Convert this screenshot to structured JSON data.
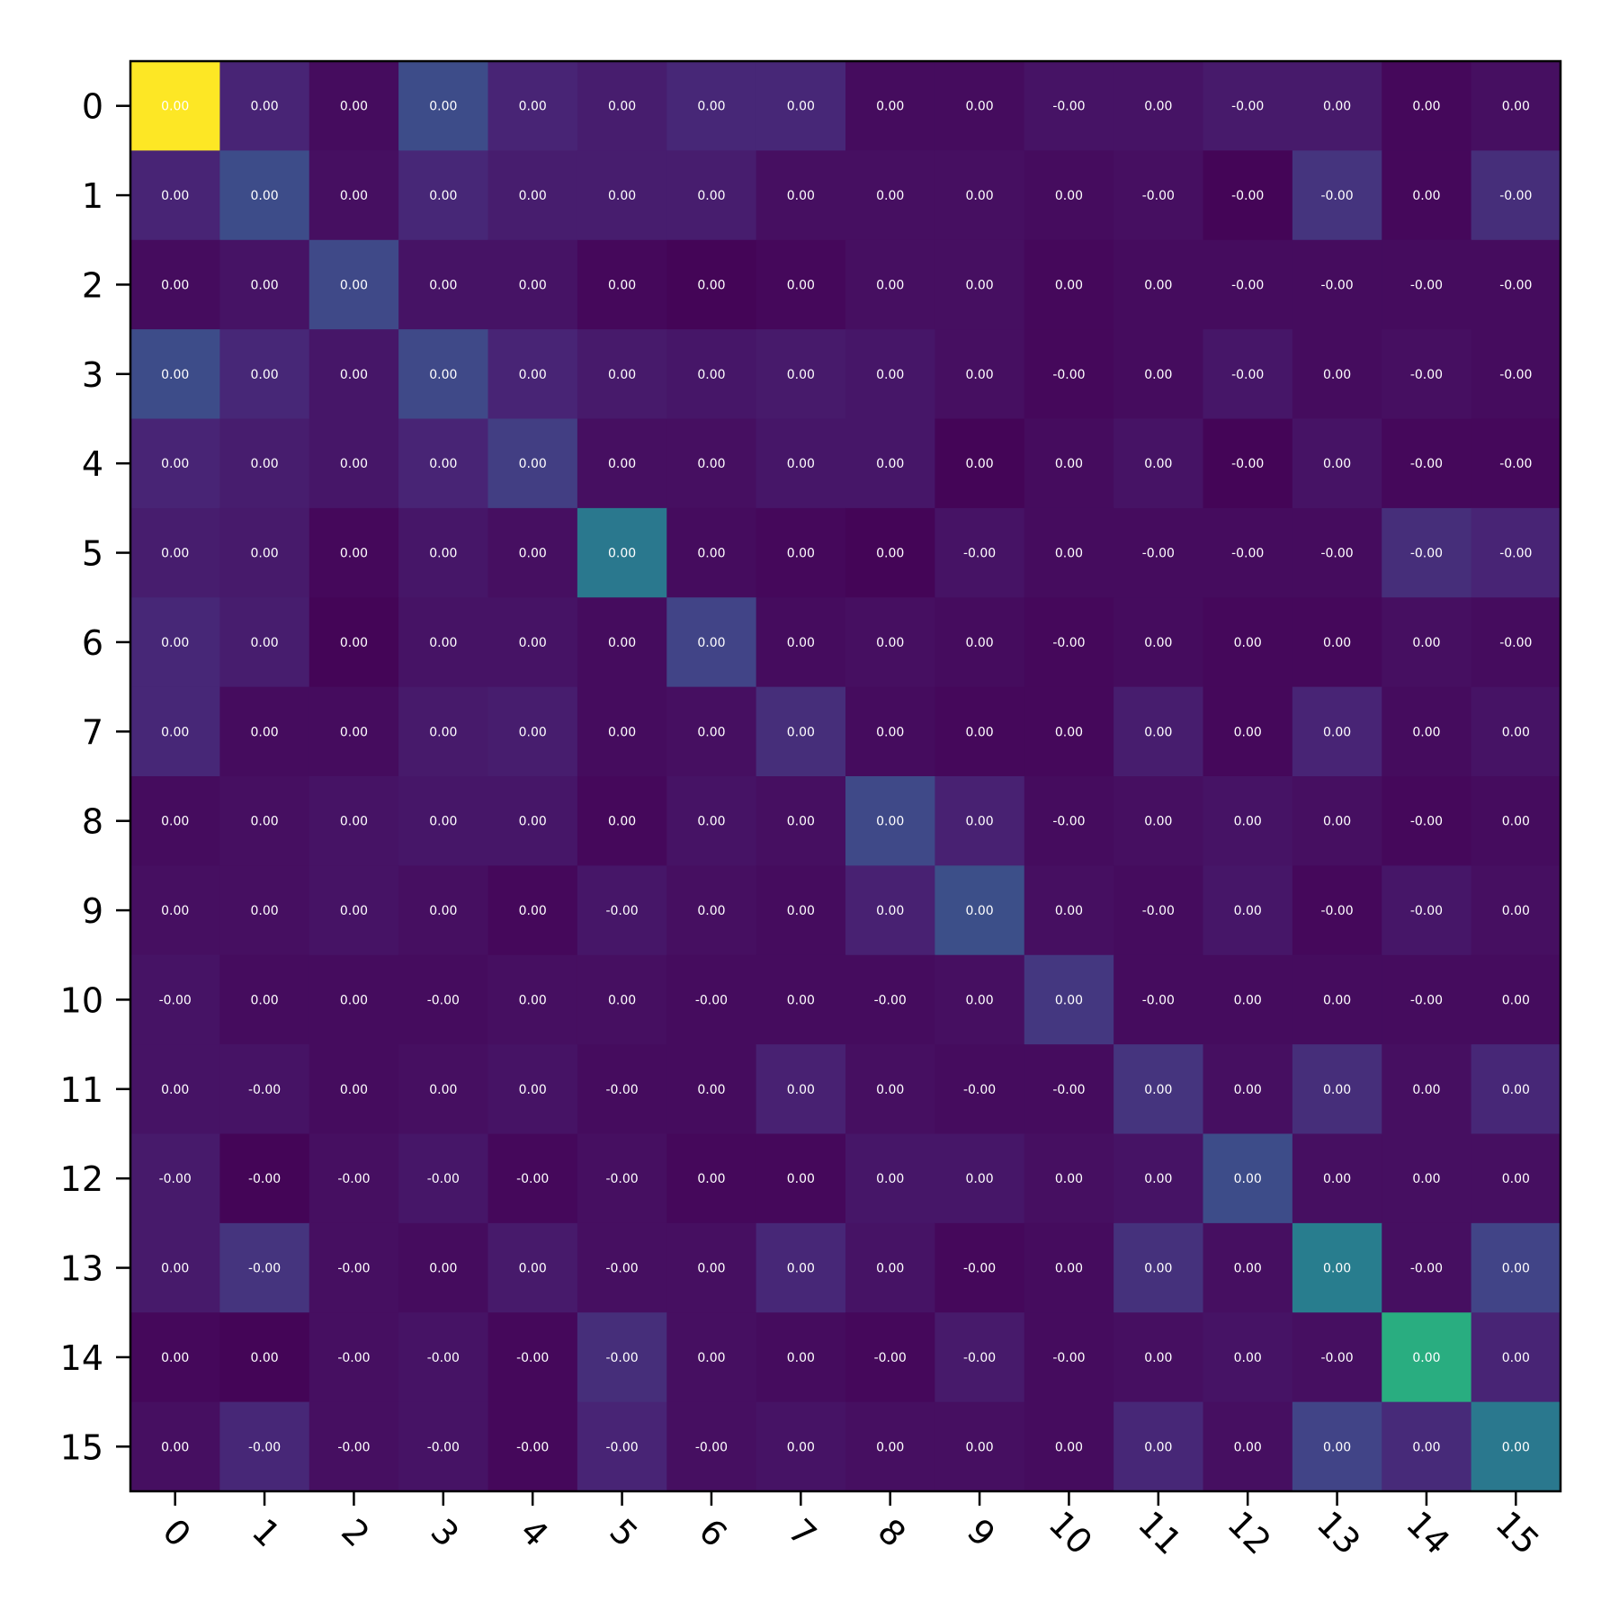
{
  "chart_data": {
    "type": "heatmap",
    "colormap": "viridis",
    "title": "",
    "xlabel": "",
    "ylabel": "",
    "x_tick_labels": [
      "0",
      "1",
      "2",
      "3",
      "4",
      "5",
      "6",
      "7",
      "8",
      "9",
      "10",
      "11",
      "12",
      "13",
      "14",
      "15"
    ],
    "y_tick_labels": [
      "0",
      "1",
      "2",
      "3",
      "4",
      "5",
      "6",
      "7",
      "8",
      "9",
      "10",
      "11",
      "12",
      "13",
      "14",
      "15"
    ],
    "x_tick_rotation_deg": 45,
    "cell_text_labels": [
      [
        "0.00",
        "0.00",
        "0.00",
        "0.00",
        "0.00",
        "0.00",
        "0.00",
        "0.00",
        "0.00",
        "0.00",
        "-0.00",
        "0.00",
        "-0.00",
        "0.00",
        "0.00",
        "0.00"
      ],
      [
        "0.00",
        "0.00",
        "0.00",
        "0.00",
        "0.00",
        "0.00",
        "0.00",
        "0.00",
        "0.00",
        "0.00",
        "0.00",
        "-0.00",
        "-0.00",
        "-0.00",
        "0.00",
        "-0.00"
      ],
      [
        "0.00",
        "0.00",
        "0.00",
        "0.00",
        "0.00",
        "0.00",
        "0.00",
        "0.00",
        "0.00",
        "0.00",
        "0.00",
        "0.00",
        "-0.00",
        "-0.00",
        "-0.00",
        "-0.00"
      ],
      [
        "0.00",
        "0.00",
        "0.00",
        "0.00",
        "0.00",
        "0.00",
        "0.00",
        "0.00",
        "0.00",
        "0.00",
        "-0.00",
        "0.00",
        "-0.00",
        "0.00",
        "-0.00",
        "-0.00"
      ],
      [
        "0.00",
        "0.00",
        "0.00",
        "0.00",
        "0.00",
        "0.00",
        "0.00",
        "0.00",
        "0.00",
        "0.00",
        "0.00",
        "0.00",
        "-0.00",
        "0.00",
        "-0.00",
        "-0.00"
      ],
      [
        "0.00",
        "0.00",
        "0.00",
        "0.00",
        "0.00",
        "0.00",
        "0.00",
        "0.00",
        "0.00",
        "-0.00",
        "0.00",
        "-0.00",
        "-0.00",
        "-0.00",
        "-0.00",
        "-0.00"
      ],
      [
        "0.00",
        "0.00",
        "0.00",
        "0.00",
        "0.00",
        "0.00",
        "0.00",
        "0.00",
        "0.00",
        "0.00",
        "-0.00",
        "0.00",
        "0.00",
        "0.00",
        "0.00",
        "-0.00"
      ],
      [
        "0.00",
        "0.00",
        "0.00",
        "0.00",
        "0.00",
        "0.00",
        "0.00",
        "0.00",
        "0.00",
        "0.00",
        "0.00",
        "0.00",
        "0.00",
        "0.00",
        "0.00",
        "0.00"
      ],
      [
        "0.00",
        "0.00",
        "0.00",
        "0.00",
        "0.00",
        "0.00",
        "0.00",
        "0.00",
        "0.00",
        "0.00",
        "-0.00",
        "0.00",
        "0.00",
        "0.00",
        "-0.00",
        "0.00"
      ],
      [
        "0.00",
        "0.00",
        "0.00",
        "0.00",
        "0.00",
        "-0.00",
        "0.00",
        "0.00",
        "0.00",
        "0.00",
        "0.00",
        "-0.00",
        "0.00",
        "-0.00",
        "-0.00",
        "0.00"
      ],
      [
        "-0.00",
        "0.00",
        "0.00",
        "-0.00",
        "0.00",
        "0.00",
        "-0.00",
        "0.00",
        "-0.00",
        "0.00",
        "0.00",
        "-0.00",
        "0.00",
        "0.00",
        "-0.00",
        "0.00"
      ],
      [
        "0.00",
        "-0.00",
        "0.00",
        "0.00",
        "0.00",
        "-0.00",
        "0.00",
        "0.00",
        "0.00",
        "-0.00",
        "-0.00",
        "0.00",
        "0.00",
        "0.00",
        "0.00",
        "0.00"
      ],
      [
        "-0.00",
        "-0.00",
        "-0.00",
        "-0.00",
        "-0.00",
        "-0.00",
        "0.00",
        "0.00",
        "0.00",
        "0.00",
        "0.00",
        "0.00",
        "0.00",
        "0.00",
        "0.00",
        "0.00"
      ],
      [
        "0.00",
        "-0.00",
        "-0.00",
        "0.00",
        "0.00",
        "-0.00",
        "0.00",
        "0.00",
        "0.00",
        "-0.00",
        "0.00",
        "0.00",
        "0.00",
        "0.00",
        "-0.00",
        "0.00"
      ],
      [
        "0.00",
        "0.00",
        "-0.00",
        "-0.00",
        "-0.00",
        "-0.00",
        "0.00",
        "0.00",
        "-0.00",
        "-0.00",
        "-0.00",
        "0.00",
        "0.00",
        "-0.00",
        "0.00",
        "0.00"
      ],
      [
        "0.00",
        "-0.00",
        "-0.00",
        "-0.00",
        "-0.00",
        "-0.00",
        "-0.00",
        "0.00",
        "0.00",
        "0.00",
        "0.00",
        "0.00",
        "0.00",
        "0.00",
        "0.00",
        "0.00"
      ]
    ],
    "intensity": [
      [
        1.0,
        0.1,
        0.03,
        0.23,
        0.1,
        0.08,
        0.11,
        0.11,
        0.03,
        0.03,
        0.05,
        0.05,
        0.07,
        0.07,
        0.02,
        0.04
      ],
      [
        0.1,
        0.23,
        0.04,
        0.11,
        0.08,
        0.08,
        0.08,
        0.04,
        0.04,
        0.04,
        0.03,
        0.04,
        0.01,
        0.15,
        0.02,
        0.13
      ],
      [
        0.03,
        0.05,
        0.22,
        0.05,
        0.05,
        0.02,
        0.01,
        0.02,
        0.04,
        0.04,
        0.02,
        0.03,
        0.03,
        0.03,
        0.03,
        0.03
      ],
      [
        0.23,
        0.11,
        0.06,
        0.22,
        0.1,
        0.07,
        0.06,
        0.07,
        0.06,
        0.04,
        0.02,
        0.03,
        0.06,
        0.03,
        0.04,
        0.03
      ],
      [
        0.1,
        0.08,
        0.06,
        0.1,
        0.18,
        0.04,
        0.04,
        0.06,
        0.06,
        0.01,
        0.03,
        0.05,
        0.01,
        0.05,
        0.02,
        0.02
      ],
      [
        0.08,
        0.07,
        0.02,
        0.06,
        0.04,
        0.4,
        0.03,
        0.02,
        0.01,
        0.05,
        0.03,
        0.03,
        0.03,
        0.03,
        0.13,
        0.1
      ],
      [
        0.11,
        0.08,
        0.01,
        0.05,
        0.05,
        0.03,
        0.2,
        0.03,
        0.04,
        0.03,
        0.02,
        0.03,
        0.02,
        0.02,
        0.04,
        0.03
      ],
      [
        0.11,
        0.03,
        0.03,
        0.07,
        0.08,
        0.03,
        0.04,
        0.13,
        0.03,
        0.02,
        0.02,
        0.08,
        0.02,
        0.1,
        0.03,
        0.05
      ],
      [
        0.03,
        0.04,
        0.05,
        0.06,
        0.06,
        0.02,
        0.05,
        0.04,
        0.22,
        0.09,
        0.03,
        0.04,
        0.05,
        0.04,
        0.02,
        0.03
      ],
      [
        0.04,
        0.04,
        0.05,
        0.04,
        0.02,
        0.06,
        0.04,
        0.03,
        0.09,
        0.24,
        0.04,
        0.03,
        0.06,
        0.02,
        0.06,
        0.04
      ],
      [
        0.05,
        0.03,
        0.03,
        0.03,
        0.04,
        0.04,
        0.03,
        0.03,
        0.03,
        0.04,
        0.16,
        0.03,
        0.03,
        0.03,
        0.03,
        0.03
      ],
      [
        0.05,
        0.05,
        0.03,
        0.04,
        0.05,
        0.03,
        0.03,
        0.09,
        0.04,
        0.03,
        0.03,
        0.15,
        0.04,
        0.13,
        0.04,
        0.11
      ],
      [
        0.07,
        0.01,
        0.04,
        0.06,
        0.02,
        0.04,
        0.02,
        0.02,
        0.06,
        0.06,
        0.04,
        0.05,
        0.23,
        0.04,
        0.04,
        0.04
      ],
      [
        0.07,
        0.15,
        0.04,
        0.03,
        0.07,
        0.04,
        0.04,
        0.11,
        0.05,
        0.02,
        0.03,
        0.14,
        0.04,
        0.42,
        0.04,
        0.2
      ],
      [
        0.02,
        0.01,
        0.04,
        0.05,
        0.02,
        0.13,
        0.04,
        0.03,
        0.02,
        0.07,
        0.03,
        0.04,
        0.05,
        0.04,
        0.62,
        0.1
      ],
      [
        0.04,
        0.11,
        0.04,
        0.05,
        0.02,
        0.1,
        0.04,
        0.05,
        0.04,
        0.04,
        0.03,
        0.11,
        0.04,
        0.2,
        0.12,
        0.4
      ]
    ]
  }
}
